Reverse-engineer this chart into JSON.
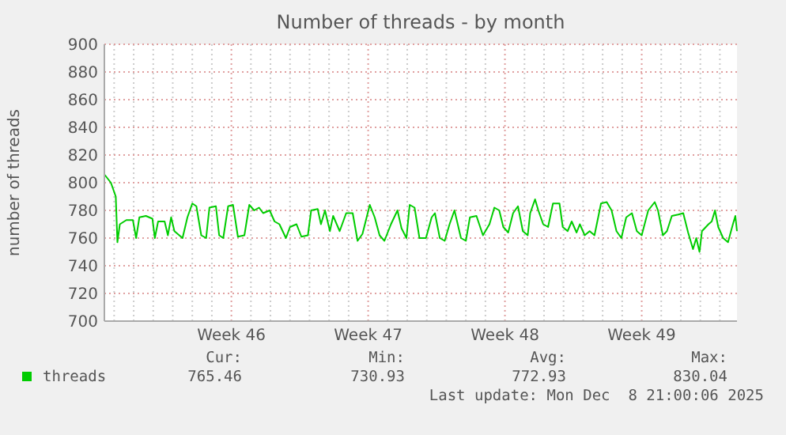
{
  "chart_data": {
    "type": "line",
    "title": "Number of threads - by month",
    "ylabel": "number of threads",
    "x": [
      "2025-11-06T12:00",
      "2025-11-06T20:00",
      "2025-11-07T02:00",
      "2025-11-07T04:00",
      "2025-11-07T07:00",
      "2025-11-07T15:00",
      "2025-11-07T23:00",
      "2025-11-08T03:00",
      "2025-11-08T07:00",
      "2025-11-08T15:00",
      "2025-11-08T23:00",
      "2025-11-09T02:00",
      "2025-11-09T06:00",
      "2025-11-09T14:00",
      "2025-11-09T18:00",
      "2025-11-09T22:00",
      "2025-11-10T02:00",
      "2025-11-10T12:00",
      "2025-11-10T18:00",
      "2025-11-11T00:00",
      "2025-11-11T05:00",
      "2025-11-11T11:00",
      "2025-11-11T17:00",
      "2025-11-11T21:00",
      "2025-11-12T05:00",
      "2025-11-12T09:00",
      "2025-11-12T14:00",
      "2025-11-12T20:00",
      "2025-11-13T02:00",
      "2025-11-13T08:00",
      "2025-11-13T16:00",
      "2025-11-13T22:00",
      "2025-11-14T04:00",
      "2025-11-14T10:00",
      "2025-11-14T15:00",
      "2025-11-14T23:00",
      "2025-11-15T05:00",
      "2025-11-15T11:00",
      "2025-11-15T19:00",
      "2025-11-16T00:00",
      "2025-11-16T08:00",
      "2025-11-16T14:00",
      "2025-11-16T22:00",
      "2025-11-17T02:00",
      "2025-11-17T10:00",
      "2025-11-17T14:00",
      "2025-11-17T19:00",
      "2025-11-18T01:00",
      "2025-11-18T05:00",
      "2025-11-18T13:00",
      "2025-11-18T21:00",
      "2025-11-19T05:00",
      "2025-11-19T11:00",
      "2025-11-19T17:00",
      "2025-11-20T02:00",
      "2025-11-20T08:00",
      "2025-11-20T14:00",
      "2025-11-20T20:00",
      "2025-11-21T04:00",
      "2025-11-21T12:00",
      "2025-11-21T17:00",
      "2025-11-21T23:00",
      "2025-11-22T03:00",
      "2025-11-22T09:00",
      "2025-11-22T15:00",
      "2025-11-22T23:00",
      "2025-11-23T06:00",
      "2025-11-23T10:00",
      "2025-11-23T16:00",
      "2025-11-23T22:00",
      "2025-11-24T04:00",
      "2025-11-24T10:00",
      "2025-11-24T18:00",
      "2025-11-25T00:00",
      "2025-11-25T05:00",
      "2025-11-25T13:00",
      "2025-11-25T21:00",
      "2025-11-26T05:00",
      "2025-11-26T11:00",
      "2025-11-26T17:00",
      "2025-11-26T22:00",
      "2025-11-27T04:00",
      "2025-11-27T10:00",
      "2025-11-27T16:00",
      "2025-11-27T22:00",
      "2025-11-28T04:00",
      "2025-11-28T07:00",
      "2025-11-28T13:00",
      "2025-11-28T17:00",
      "2025-11-28T23:00",
      "2025-11-29T05:00",
      "2025-11-29T11:00",
      "2025-11-29T19:00",
      "2025-11-29T23:00",
      "2025-11-30T05:00",
      "2025-11-30T10:00",
      "2025-11-30T16:00",
      "2025-11-30T20:00",
      "2025-12-01T02:00",
      "2025-12-01T08:00",
      "2025-12-01T14:00",
      "2025-12-01T22:00",
      "2025-12-02T05:00",
      "2025-12-02T11:00",
      "2025-12-02T17:00",
      "2025-12-02T23:00",
      "2025-12-03T05:00",
      "2025-12-03T12:00",
      "2025-12-03T18:00",
      "2025-12-04T00:00",
      "2025-12-04T08:00",
      "2025-12-04T16:00",
      "2025-12-04T20:00",
      "2025-12-05T02:00",
      "2025-12-05T07:00",
      "2025-12-05T13:00",
      "2025-12-05T21:00",
      "2025-12-06T03:00",
      "2025-12-06T09:00",
      "2025-12-06T15:00",
      "2025-12-06T19:00",
      "2025-12-06T23:00",
      "2025-12-07T02:00",
      "2025-12-07T10:00",
      "2025-12-07T14:00",
      "2025-12-07T18:00",
      "2025-12-07T22:00",
      "2025-12-08T04:00",
      "2025-12-08T10:00",
      "2025-12-08T16:00",
      "2025-12-08T19:00",
      "2025-12-08T21:00"
    ],
    "series": [
      {
        "name": "threads",
        "color": "#00cc00",
        "values": [
          806,
          800,
          790,
          757,
          770,
          773,
          773,
          760,
          775,
          776,
          774,
          760,
          772,
          772,
          762,
          775,
          765,
          760,
          775,
          785,
          783,
          762,
          760,
          782,
          783,
          762,
          760,
          783,
          784,
          761,
          762,
          784,
          780,
          782,
          778,
          780,
          772,
          770,
          760,
          768,
          770,
          761,
          762,
          780,
          781,
          770,
          780,
          765,
          776,
          765,
          778,
          778,
          758,
          763,
          784,
          775,
          762,
          758,
          770,
          780,
          767,
          760,
          784,
          782,
          760,
          760,
          775,
          778,
          760,
          758,
          770,
          780,
          760,
          758,
          775,
          776,
          762,
          770,
          782,
          780,
          768,
          764,
          778,
          783,
          765,
          762,
          778,
          788,
          780,
          770,
          768,
          785,
          785,
          768,
          765,
          772,
          764,
          770,
          762,
          765,
          762,
          785,
          786,
          780,
          765,
          760,
          775,
          778,
          765,
          762,
          780,
          786,
          780,
          762,
          765,
          776,
          777,
          778,
          764,
          752,
          760,
          750,
          765,
          770,
          772,
          780,
          768,
          760,
          757,
          770,
          776,
          765
        ]
      }
    ],
    "xlim": [
      "2025-11-06T12:00",
      "2025-12-08T21:00"
    ],
    "xticks": [
      {
        "value": "2025-11-07",
        "label": null
      },
      {
        "value": "2025-11-08",
        "label": null
      },
      {
        "value": "2025-11-09",
        "label": null
      },
      {
        "value": "2025-11-10",
        "label": null
      },
      {
        "value": "2025-11-11",
        "label": null
      },
      {
        "value": "2025-11-12",
        "label": null
      },
      {
        "value": "2025-11-13",
        "label": "Week 46"
      },
      {
        "value": "2025-11-14",
        "label": null
      },
      {
        "value": "2025-11-15",
        "label": null
      },
      {
        "value": "2025-11-16",
        "label": null
      },
      {
        "value": "2025-11-17",
        "label": null
      },
      {
        "value": "2025-11-18",
        "label": null
      },
      {
        "value": "2025-11-19",
        "label": null
      },
      {
        "value": "2025-11-20",
        "label": "Week 47"
      },
      {
        "value": "2025-11-21",
        "label": null
      },
      {
        "value": "2025-11-22",
        "label": null
      },
      {
        "value": "2025-11-23",
        "label": null
      },
      {
        "value": "2025-11-24",
        "label": null
      },
      {
        "value": "2025-11-25",
        "label": null
      },
      {
        "value": "2025-11-26",
        "label": null
      },
      {
        "value": "2025-11-27",
        "label": "Week 48"
      },
      {
        "value": "2025-11-28",
        "label": null
      },
      {
        "value": "2025-11-29",
        "label": null
      },
      {
        "value": "2025-11-30",
        "label": null
      },
      {
        "value": "2025-12-01",
        "label": null
      },
      {
        "value": "2025-12-02",
        "label": null
      },
      {
        "value": "2025-12-03",
        "label": null
      },
      {
        "value": "2025-12-04",
        "label": "Week 49"
      },
      {
        "value": "2025-12-05",
        "label": null
      },
      {
        "value": "2025-12-06",
        "label": null
      },
      {
        "value": "2025-12-07",
        "label": null
      },
      {
        "value": "2025-12-08",
        "label": null
      }
    ],
    "ylim": [
      700,
      900
    ],
    "yticks": [
      700,
      720,
      740,
      760,
      780,
      800,
      820,
      840,
      860,
      880,
      900
    ],
    "grid": true,
    "legend": "bottom",
    "annotations": [
      "Cur:",
      "765.46",
      "Min:",
      "730.93",
      "Avg:",
      "772.93",
      "Max:",
      "830.04",
      "Last update: Mon Dec  8 21:00:06 2025"
    ]
  }
}
